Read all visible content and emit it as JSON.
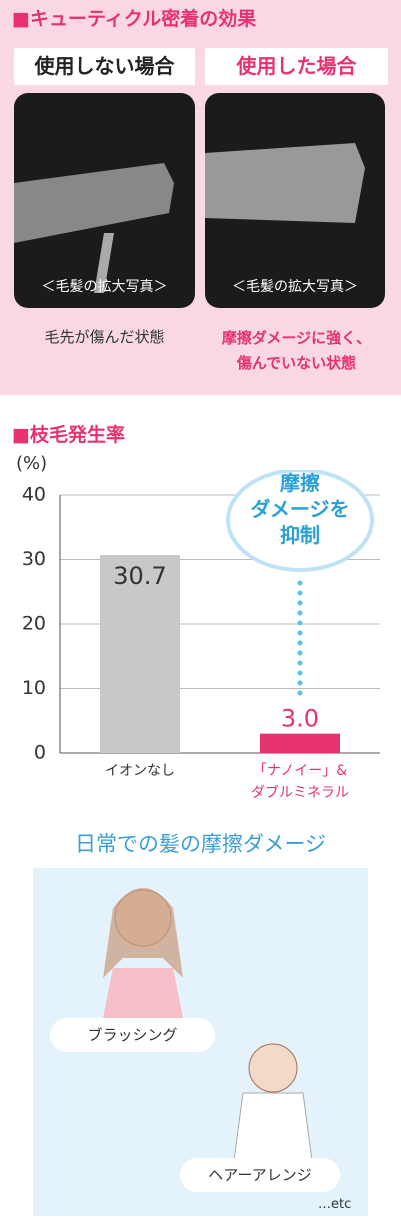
{
  "header": {
    "title": "■キューティクル密着の効果"
  },
  "comparison": [
    {
      "label": "使用しない場合",
      "caption": "＜毛髪の拡大写真＞",
      "result": "毛先が傷んだ状態"
    },
    {
      "label": "使用した場合",
      "caption": "＜毛髪の拡大写真＞",
      "result": "摩擦ダメージに強く、\n傷んでいない状態"
    }
  ],
  "chart_data": {
    "type": "bar",
    "title": "■枝毛発生率",
    "y_label": "(%)",
    "categories": [
      "イオンなし",
      "「ナノイー」&\nダブルミネラル"
    ],
    "values": [
      30.7,
      3.0
    ],
    "value_labels": [
      "30.7",
      "3.0"
    ],
    "colors": [
      "#c8c8c8",
      "#e6336f"
    ],
    "label_colors": [
      "#333333",
      "#e6336f"
    ],
    "ylim": [
      0,
      40
    ],
    "yticks": [
      0,
      10,
      20,
      30,
      40
    ],
    "grid": true,
    "annotation": "摩擦\nダメージを\n抑制"
  },
  "daily": {
    "title": "日常での髪の摩擦ダメージ",
    "items": [
      "ブラッシング",
      "ヘアーアレンジ"
    ],
    "note": "…etc"
  }
}
